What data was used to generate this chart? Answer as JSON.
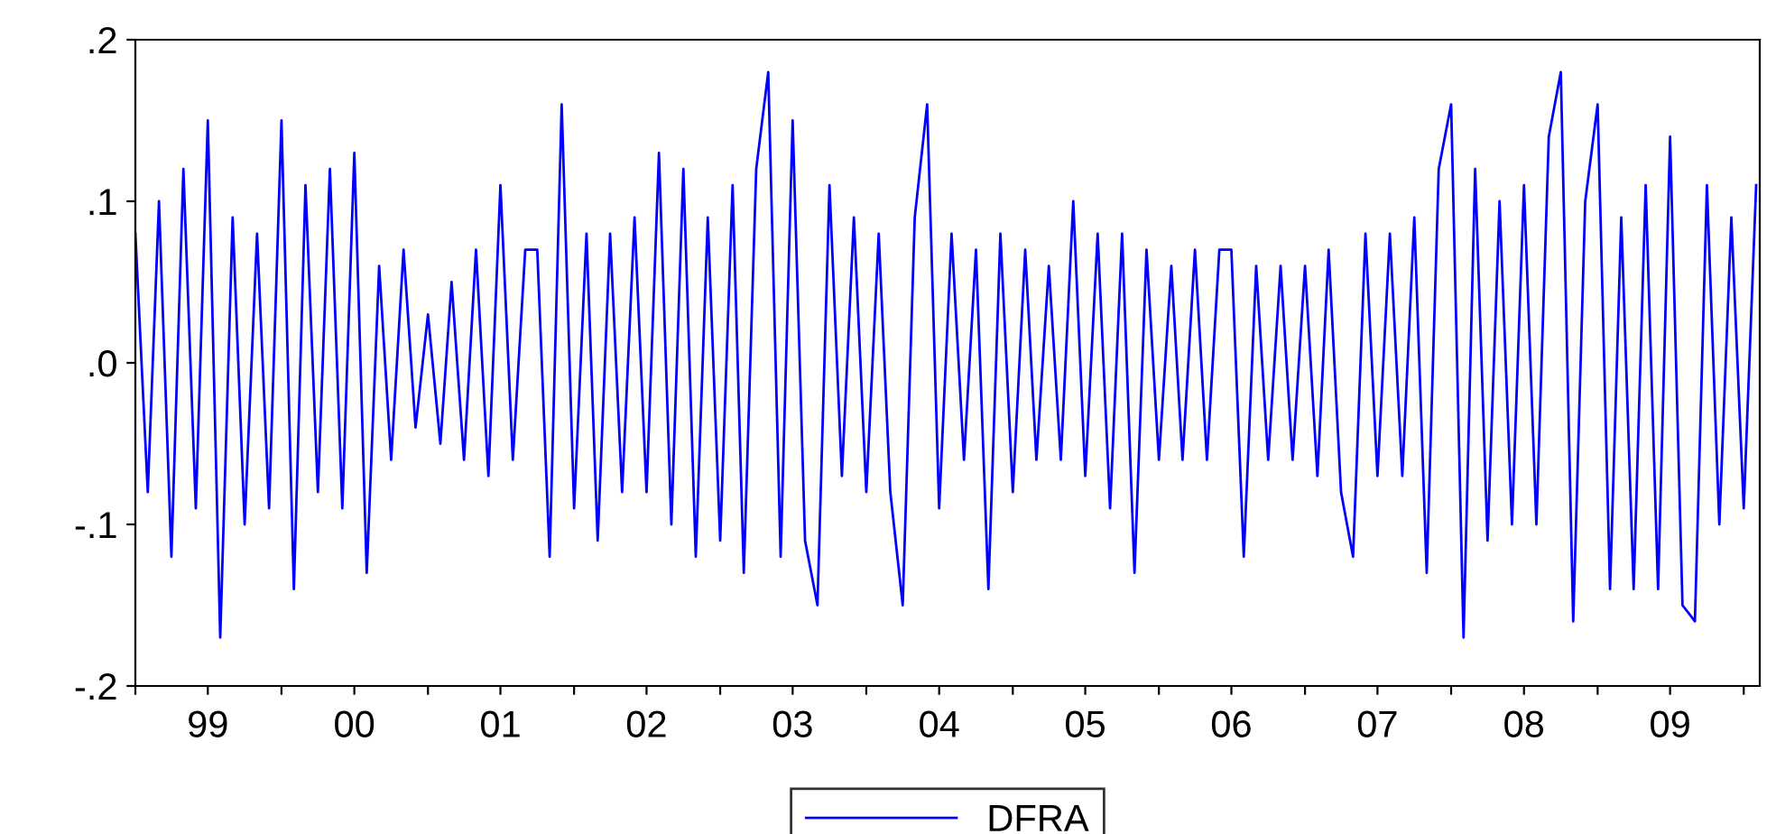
{
  "chart_data": {
    "type": "line",
    "legend": "bottom",
    "grid": false,
    "line_style": "solid",
    "marker": "none",
    "x": [
      "1999-01",
      "1999-02",
      "1999-03",
      "1999-04",
      "1999-05",
      "1999-06",
      "1999-07",
      "1999-08",
      "1999-09",
      "1999-10",
      "1999-11",
      "1999-12",
      "2000-01",
      "2000-02",
      "2000-03",
      "2000-04",
      "2000-05",
      "2000-06",
      "2000-07",
      "2000-08",
      "2000-09",
      "2000-10",
      "2000-11",
      "2000-12",
      "2001-01",
      "2001-02",
      "2001-03",
      "2001-04",
      "2001-05",
      "2001-06",
      "2001-07",
      "2001-08",
      "2001-09",
      "2001-10",
      "2001-11",
      "2001-12",
      "2002-01",
      "2002-02",
      "2002-03",
      "2002-04",
      "2002-05",
      "2002-06",
      "2002-07",
      "2002-08",
      "2002-09",
      "2002-10",
      "2002-11",
      "2002-12",
      "2003-01",
      "2003-02",
      "2003-03",
      "2003-04",
      "2003-05",
      "2003-06",
      "2003-07",
      "2003-08",
      "2003-09",
      "2003-10",
      "2003-11",
      "2003-12",
      "2004-01",
      "2004-02",
      "2004-03",
      "2004-04",
      "2004-05",
      "2004-06",
      "2004-07",
      "2004-08",
      "2004-09",
      "2004-10",
      "2004-11",
      "2004-12",
      "2005-01",
      "2005-02",
      "2005-03",
      "2005-04",
      "2005-05",
      "2005-06",
      "2005-07",
      "2005-08",
      "2005-09",
      "2005-10",
      "2005-11",
      "2005-12",
      "2006-01",
      "2006-02",
      "2006-03",
      "2006-04",
      "2006-05",
      "2006-06",
      "2006-07",
      "2006-08",
      "2006-09",
      "2006-10",
      "2006-11",
      "2006-12",
      "2007-01",
      "2007-02",
      "2007-03",
      "2007-04",
      "2007-05",
      "2007-06",
      "2007-07",
      "2007-08",
      "2007-09",
      "2007-10",
      "2007-11",
      "2007-12",
      "2008-01",
      "2008-02",
      "2008-03",
      "2008-04",
      "2008-05",
      "2008-06",
      "2008-07",
      "2008-08",
      "2008-09",
      "2008-10",
      "2008-11",
      "2008-12",
      "2009-01",
      "2009-02",
      "2009-03",
      "2009-04",
      "2009-05",
      "2009-06",
      "2009-07",
      "2009-08",
      "2009-09",
      "2009-10",
      "2009-11",
      "2009-12",
      "2010-01",
      "2010-02"
    ],
    "series": [
      {
        "name": "DFRA",
        "color": "#0000ff",
        "values": [
          0.08,
          -0.08,
          0.1,
          -0.12,
          0.12,
          -0.09,
          0.15,
          -0.17,
          0.09,
          -0.1,
          0.08,
          -0.09,
          0.15,
          -0.14,
          0.11,
          -0.08,
          0.12,
          -0.09,
          0.13,
          -0.13,
          0.06,
          -0.06,
          0.07,
          -0.04,
          0.03,
          -0.05,
          0.05,
          -0.06,
          0.07,
          -0.07,
          0.11,
          -0.06,
          0.07,
          0.07,
          -0.12,
          0.16,
          -0.09,
          0.08,
          -0.11,
          0.08,
          -0.08,
          0.09,
          -0.08,
          0.13,
          -0.1,
          0.12,
          -0.12,
          0.09,
          -0.11,
          0.11,
          -0.13,
          0.12,
          0.18,
          -0.12,
          0.15,
          -0.11,
          -0.15,
          0.11,
          -0.07,
          0.09,
          -0.08,
          0.08,
          -0.08,
          -0.15,
          0.09,
          0.16,
          -0.09,
          0.08,
          -0.06,
          0.07,
          -0.14,
          0.08,
          -0.08,
          0.07,
          -0.06,
          0.06,
          -0.06,
          0.1,
          -0.07,
          0.08,
          -0.09,
          0.08,
          -0.13,
          0.07,
          -0.06,
          0.06,
          -0.06,
          0.07,
          -0.06,
          0.07,
          0.07,
          -0.12,
          0.06,
          -0.06,
          0.06,
          -0.06,
          0.06,
          -0.07,
          0.07,
          -0.08,
          -0.12,
          0.08,
          -0.07,
          0.08,
          -0.07,
          0.09,
          -0.13,
          0.12,
          0.16,
          -0.17,
          0.12,
          -0.11,
          0.1,
          -0.1,
          0.11,
          -0.1,
          0.14,
          0.18,
          -0.16,
          0.1,
          0.16,
          -0.14,
          0.09,
          -0.14,
          0.11,
          -0.14,
          0.14,
          -0.15,
          -0.16,
          0.11,
          -0.1,
          0.09,
          -0.09,
          0.11
        ]
      }
    ],
    "xlim": [
      "1999-01-01",
      "2010-02-10"
    ],
    "xticks": [
      {
        "value": "1999-01-01",
        "label": null
      },
      {
        "value": "1999-07-01",
        "label": "99"
      },
      {
        "value": "2000-01-01",
        "label": null
      },
      {
        "value": "2000-07-01",
        "label": "00"
      },
      {
        "value": "2001-01-01",
        "label": null
      },
      {
        "value": "2001-07-01",
        "label": "01"
      },
      {
        "value": "2002-01-01",
        "label": null
      },
      {
        "value": "2002-07-01",
        "label": "02"
      },
      {
        "value": "2003-01-01",
        "label": null
      },
      {
        "value": "2003-07-01",
        "label": "03"
      },
      {
        "value": "2004-01-01",
        "label": null
      },
      {
        "value": "2004-07-01",
        "label": "04"
      },
      {
        "value": "2005-01-01",
        "label": null
      },
      {
        "value": "2005-07-01",
        "label": "05"
      },
      {
        "value": "2006-01-01",
        "label": null
      },
      {
        "value": "2006-07-01",
        "label": "06"
      },
      {
        "value": "2007-01-01",
        "label": null
      },
      {
        "value": "2007-07-01",
        "label": "07"
      },
      {
        "value": "2008-01-01",
        "label": null
      },
      {
        "value": "2008-07-01",
        "label": "08"
      },
      {
        "value": "2009-01-01",
        "label": null
      },
      {
        "value": "2009-07-01",
        "label": "09"
      },
      {
        "value": "2010-01-01",
        "label": null
      }
    ],
    "ylim": [
      -0.2,
      0.2
    ],
    "yticks": [
      {
        "value": 0.2,
        "label": ".2"
      },
      {
        "value": 0.1,
        "label": ".1"
      },
      {
        "value": 0.0,
        "label": ".0"
      },
      {
        "value": -0.1,
        "label": "-.1"
      },
      {
        "value": -0.2,
        "label": "-.2"
      }
    ]
  }
}
